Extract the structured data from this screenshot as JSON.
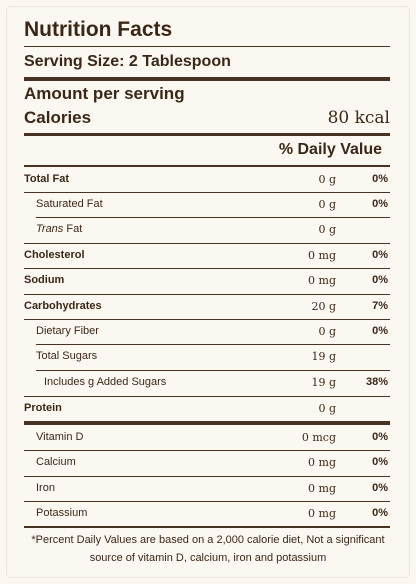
{
  "title": "Nutrition Facts",
  "serving_size": "Serving Size: 2 Tablespoon",
  "amount_per_serving": "Amount per serving",
  "calories_label": "Calories",
  "calories_value": "80 kcal",
  "daily_value_header": "% Daily Value",
  "nutrients": [
    {
      "name": "Total Fat",
      "amount": "0 g",
      "dv": "0%"
    },
    {
      "name": "Saturated Fat",
      "amount": "0 g",
      "dv": "0%"
    },
    {
      "name_italic": "Trans",
      "name_rest": " Fat",
      "amount": "0 g",
      "dv": ""
    },
    {
      "name": "Cholesterol",
      "amount": "0 mg",
      "dv": "0%"
    },
    {
      "name": "Sodium",
      "amount": "0 mg",
      "dv": "0%"
    },
    {
      "name": "Carbohydrates",
      "amount": "20 g",
      "dv": "7%"
    },
    {
      "name": "Dietary Fiber",
      "amount": "0 g",
      "dv": "0%"
    },
    {
      "name": "Total Sugars",
      "amount": "19 g",
      "dv": ""
    },
    {
      "name": "Includes g Added Sugars",
      "amount": "19 g",
      "dv": "38%"
    },
    {
      "name": "Protein",
      "amount": "0 g",
      "dv": ""
    },
    {
      "name": "Vitamin D",
      "amount": "0 mcg",
      "dv": "0%"
    },
    {
      "name": "Calcium",
      "amount": "0 mg",
      "dv": "0%"
    },
    {
      "name": "Iron",
      "amount": "0 mg",
      "dv": "0%"
    },
    {
      "name": "Potassium",
      "amount": "0 mg",
      "dv": "0%"
    }
  ],
  "footnote": "*Percent Daily Values are based on a 2,000 calorie diet, Not a significant source of vitamin D, calcium, iron and potassium"
}
